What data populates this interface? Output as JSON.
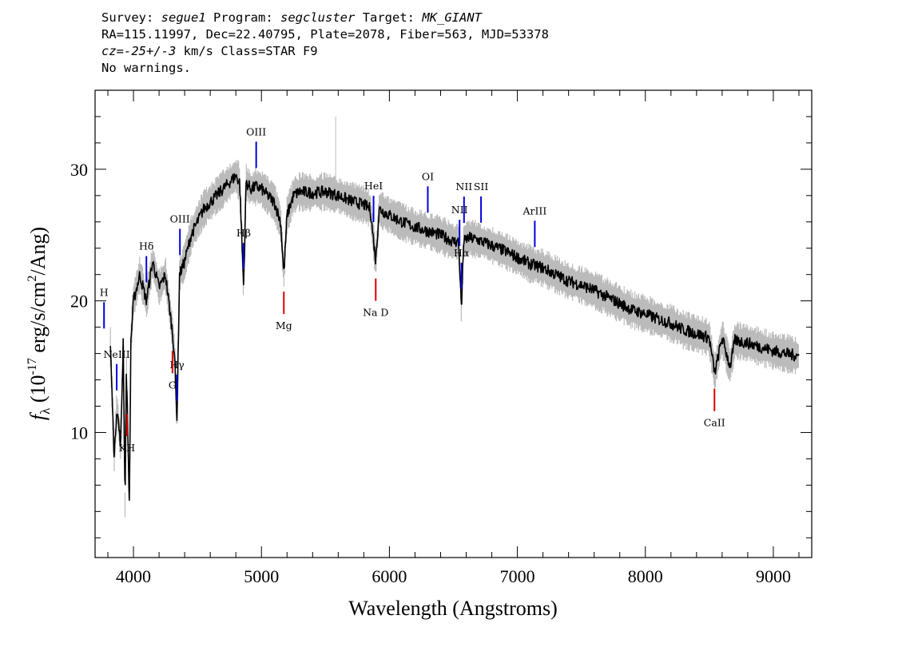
{
  "header": {
    "survey_label": "Survey:",
    "survey": "segue1",
    "program_label": "Program:",
    "program": "segcluster",
    "target_label": "Target:",
    "target": "MK_GIANT",
    "line2": "RA=115.11997, Dec=22.40795, Plate=2078, Fiber=563, MJD=53378",
    "cz_label": "cz=",
    "cz_value": "-25+/-3",
    "cz_rest": " km/s Class=STAR F9",
    "line4": "No warnings."
  },
  "chart_data": {
    "type": "line",
    "xlabel": "Wavelength (Angstroms)",
    "ylabel": "f_λ (10^-17 erg/s/cm^2/Ang)",
    "xlim": [
      3700,
      9300
    ],
    "ylim": [
      0.5,
      36
    ],
    "xticks": [
      4000,
      5000,
      6000,
      7000,
      8000,
      9000
    ],
    "yticks": [
      10,
      20,
      30
    ],
    "colors": {
      "spectrum": "#000000",
      "error_band": "#bbbbbb",
      "emission": "#0000dd",
      "absorption": "#dd0000"
    },
    "series": [
      {
        "name": "flux",
        "x": [
          3820,
          3850,
          3870,
          3900,
          3920,
          3934,
          3945,
          3968,
          3980,
          4000,
          4050,
          4101,
          4150,
          4200,
          4250,
          4300,
          4320,
          4340,
          4360,
          4400,
          4450,
          4500,
          4550,
          4600,
          4650,
          4700,
          4750,
          4800,
          4830,
          4861,
          4880,
          4920,
          4960,
          5000,
          5050,
          5100,
          5150,
          5175,
          5200,
          5250,
          5300,
          5400,
          5500,
          5600,
          5700,
          5800,
          5850,
          5893,
          5920,
          5950,
          6000,
          6100,
          6200,
          6300,
          6400,
          6500,
          6540,
          6563,
          6580,
          6620,
          6700,
          6800,
          6900,
          7000,
          7100,
          7200,
          7300,
          7400,
          7500,
          7600,
          7700,
          7800,
          7900,
          8000,
          8100,
          8200,
          8300,
          8400,
          8498,
          8542,
          8600,
          8662,
          8700,
          8800,
          8900,
          9000,
          9100,
          9200
        ],
        "values": [
          16.5,
          8,
          12,
          9,
          17,
          4.5,
          15,
          4.5,
          17,
          20,
          22,
          20,
          23,
          21,
          22,
          18,
          16,
          11,
          22,
          23,
          25,
          26,
          27,
          27.5,
          28,
          28.5,
          29,
          29.5,
          29,
          21,
          29,
          28.5,
          28.7,
          28.5,
          28,
          27.5,
          26,
          22,
          26.5,
          28,
          28.3,
          28.2,
          28.3,
          28,
          27.6,
          27.3,
          27,
          23,
          27,
          26.8,
          26.5,
          26,
          25.6,
          25.3,
          25,
          24.5,
          24.5,
          19.5,
          24.5,
          24.8,
          24.6,
          24.2,
          23.8,
          23.3,
          22.8,
          22.5,
          22,
          21.5,
          21.2,
          20.8,
          20.3,
          19.8,
          19.3,
          19,
          18.6,
          18.3,
          17.8,
          17.5,
          17.2,
          14.5,
          17.2,
          15,
          17,
          16.8,
          16.5,
          16.2,
          16,
          15.8
        ]
      }
    ],
    "annotations": [
      {
        "label": "H",
        "x": 3770,
        "type": "emission"
      },
      {
        "label": "NeIII",
        "x": 3869,
        "type": "emission"
      },
      {
        "label": "Hδ",
        "x": 4101,
        "type": "emission"
      },
      {
        "label": "Hγ",
        "x": 4340,
        "type": "emission"
      },
      {
        "label": "OIII",
        "x": 4363,
        "type": "emission"
      },
      {
        "label": "Hβ",
        "x": 4861,
        "type": "emission"
      },
      {
        "label": "OIII",
        "x": 4959,
        "type": "emission"
      },
      {
        "label": "HeI",
        "x": 5876,
        "type": "emission"
      },
      {
        "label": "OI",
        "x": 6300,
        "type": "emission"
      },
      {
        "label": "NII",
        "x": 6548,
        "type": "emission"
      },
      {
        "label": "Hα",
        "x": 6563,
        "type": "emission"
      },
      {
        "label": "NII",
        "x": 6583,
        "type": "emission"
      },
      {
        "label": "SII",
        "x": 6716,
        "type": "emission"
      },
      {
        "label": "ArIII",
        "x": 7136,
        "type": "emission"
      },
      {
        "label": "KH",
        "x": 3950,
        "type": "absorption"
      },
      {
        "label": "G",
        "x": 4305,
        "type": "absorption"
      },
      {
        "label": "Mg",
        "x": 5175,
        "type": "absorption"
      },
      {
        "label": "Na D",
        "x": 5893,
        "type": "absorption"
      },
      {
        "label": "CaII",
        "x": 8540,
        "type": "absorption"
      }
    ]
  }
}
